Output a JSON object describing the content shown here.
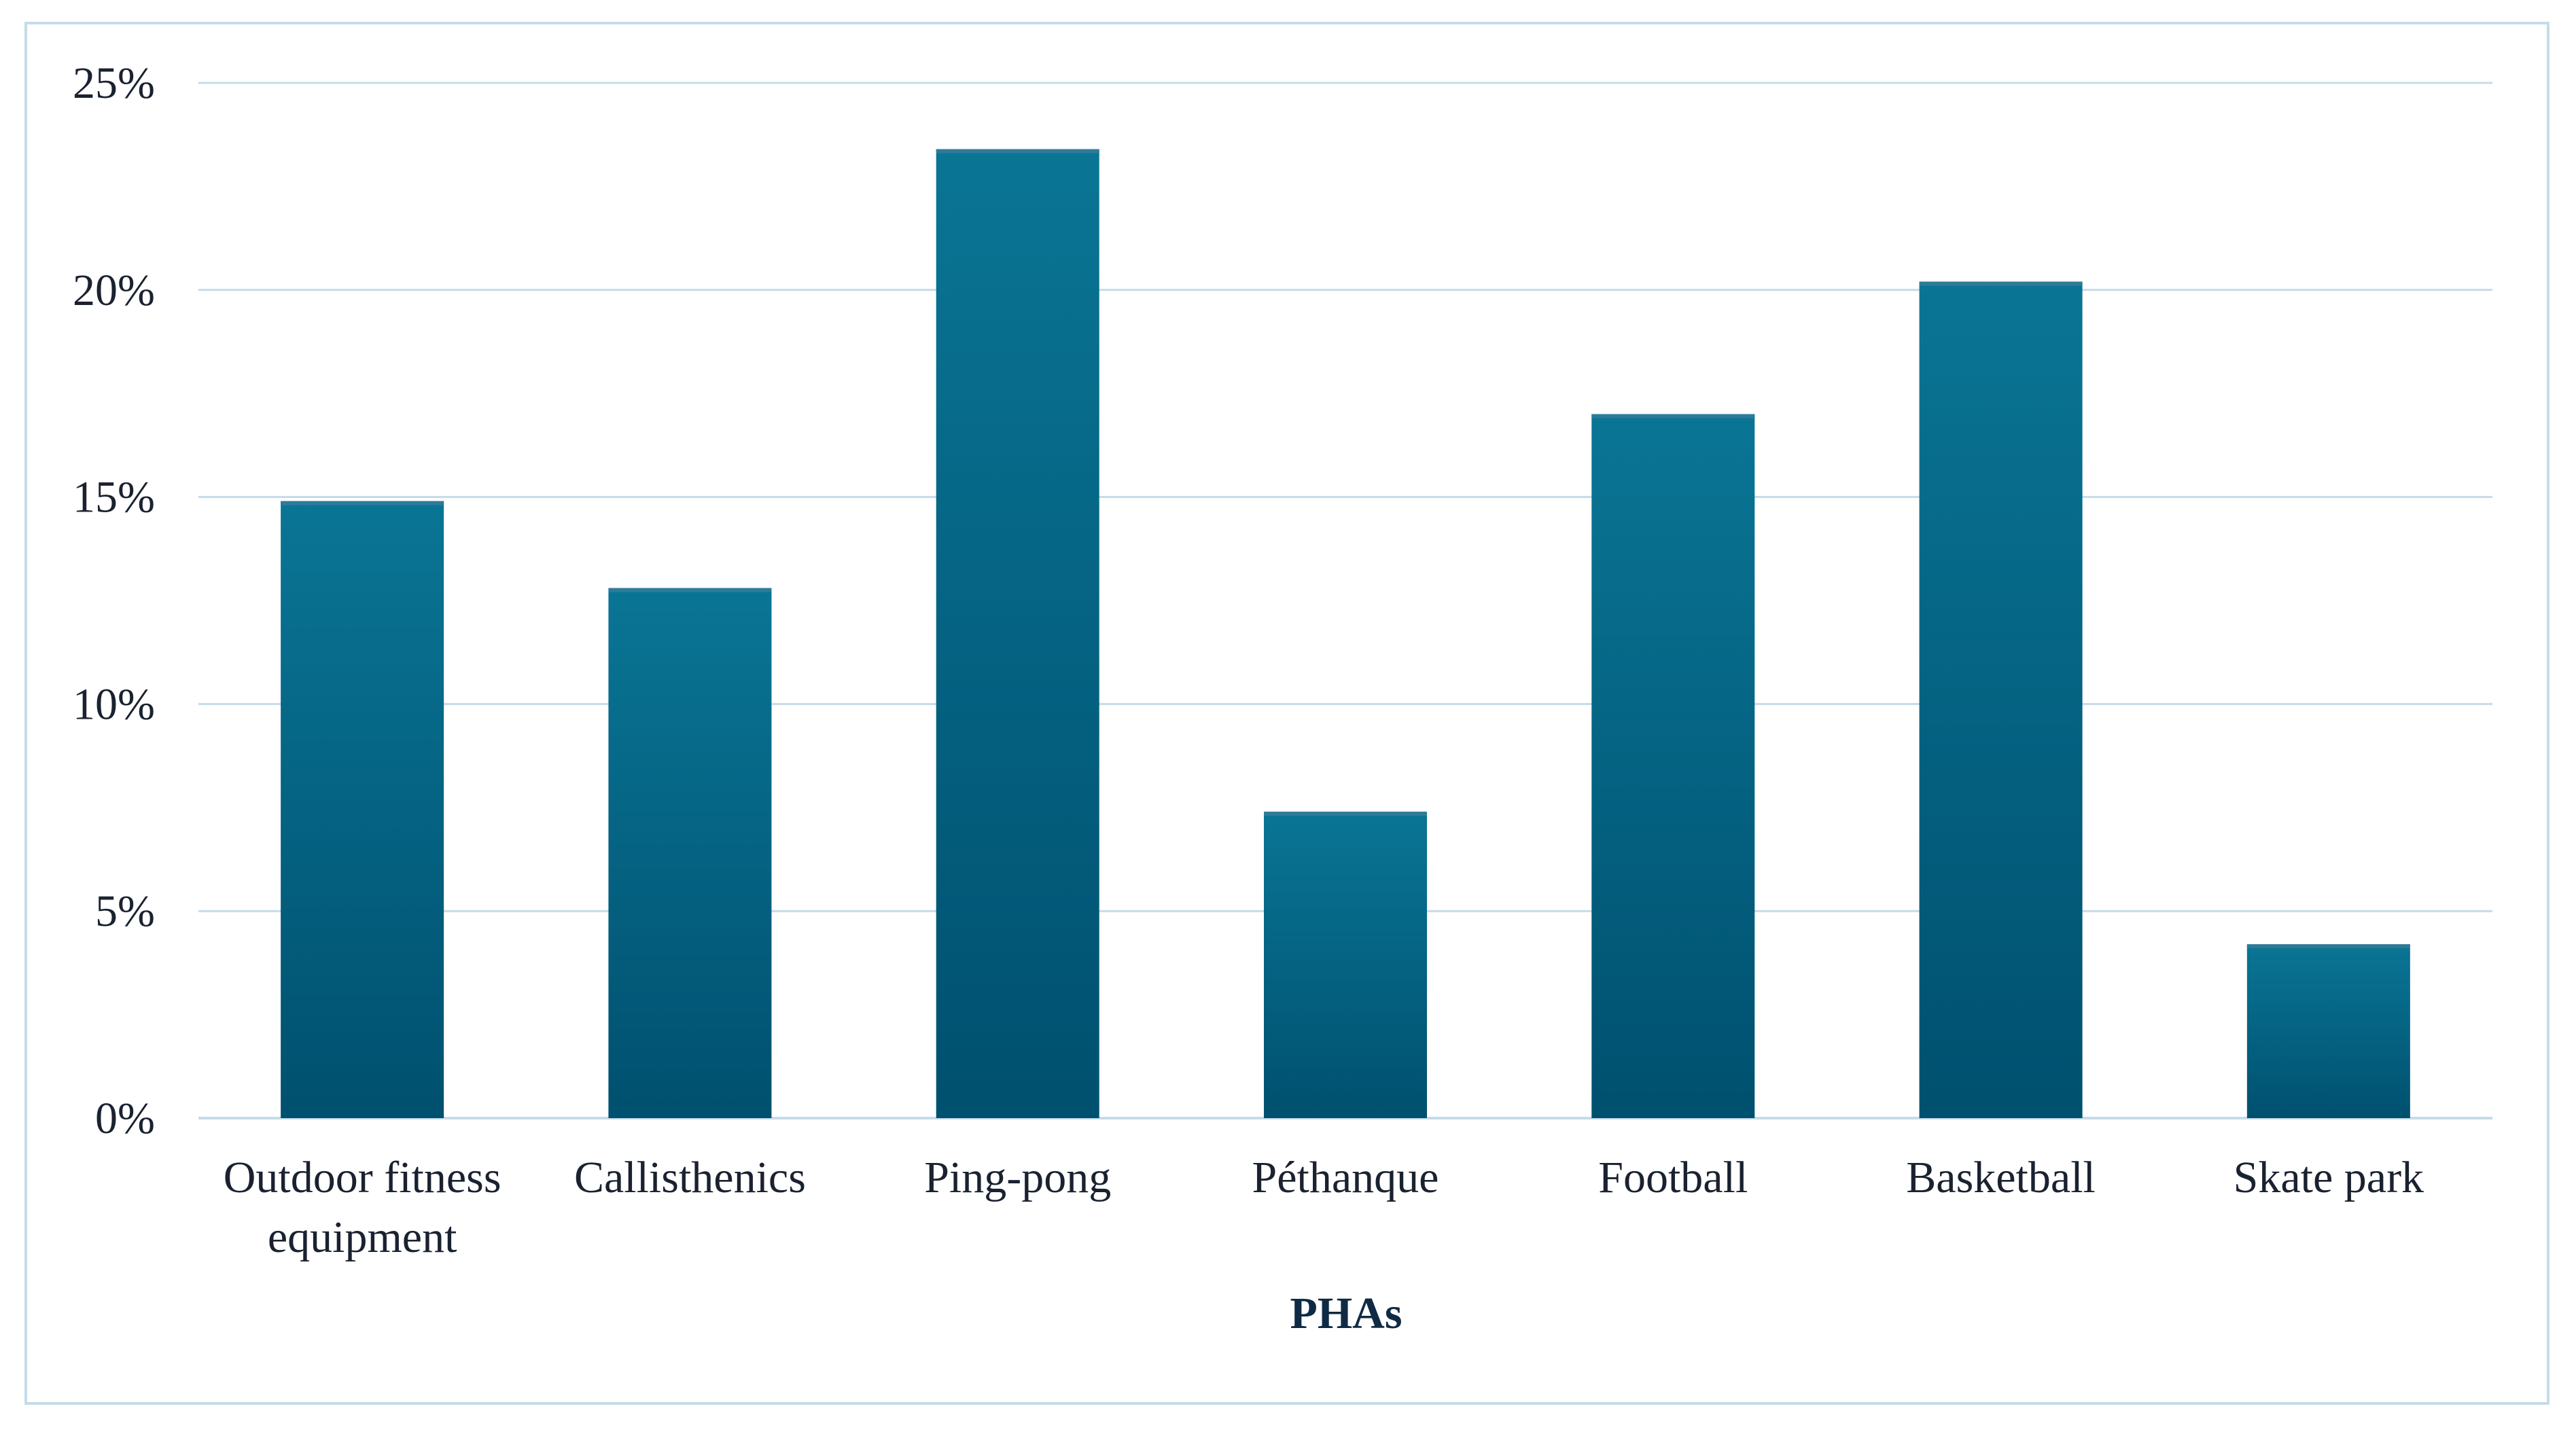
{
  "chart_data": {
    "type": "bar",
    "categories": [
      "Outdoor fitness equipment",
      "Callisthenics",
      "Ping-pong",
      "Péthanque",
      "Football",
      "Basketball",
      "Skate park"
    ],
    "category_lines": [
      [
        "Outdoor fitness",
        "equipment"
      ],
      [
        "Callisthenics"
      ],
      [
        "Ping-pong"
      ],
      [
        "Péthanque"
      ],
      [
        "Football"
      ],
      [
        "Basketball"
      ],
      [
        "Skate park"
      ]
    ],
    "values": [
      14.9,
      12.8,
      23.4,
      7.4,
      17.0,
      20.2,
      4.2
    ],
    "yticks": [
      "0%",
      "5%",
      "10%",
      "15%",
      "20%",
      "25%"
    ],
    "ytick_values": [
      0,
      5,
      10,
      15,
      20,
      25
    ],
    "ylim": [
      0,
      25
    ],
    "xlabel": "PHAs",
    "ylabel": "",
    "title": "",
    "grid": true,
    "legend": "none",
    "colors": {
      "bar_top": "#0a7595",
      "bar_bottom": "#00506f",
      "bar_cap": "#2e7b99",
      "grid": "#c5dbe8",
      "frame": "#c5dbe8",
      "text": "#1a2230",
      "axis_title": "#0f2a44"
    }
  }
}
